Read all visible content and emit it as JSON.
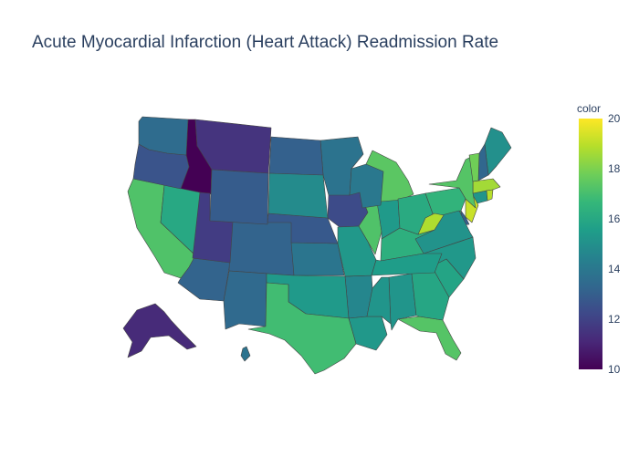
{
  "title": "Acute Myocardial Infarction (Heart Attack) Readmission Rate",
  "colorbar": {
    "title": "color",
    "min": 10,
    "max": 20,
    "ticks": [
      "10",
      "12",
      "14",
      "16",
      "18",
      "20"
    ],
    "colorscale": [
      "#440154",
      "#482878",
      "#3e4989",
      "#31688e",
      "#26828e",
      "#1f9e89",
      "#35b779",
      "#6ece58",
      "#b5de2b",
      "#fde725"
    ]
  },
  "chart_data": {
    "type": "choropleth",
    "scope": "usa",
    "colorscale": "Viridis",
    "range": [
      10,
      20
    ],
    "states": [
      {
        "state": "AK",
        "value": 11.2
      },
      {
        "state": "AL",
        "value": 15.2
      },
      {
        "state": "AR",
        "value": 14.6
      },
      {
        "state": "AZ",
        "value": 13.2
      },
      {
        "state": "CA",
        "value": 17.2
      },
      {
        "state": "CO",
        "value": 13.2
      },
      {
        "state": "CT",
        "value": 15.2
      },
      {
        "state": "DE",
        "value": 13.0
      },
      {
        "state": "FL",
        "value": 17.3
      },
      {
        "state": "GA",
        "value": 15.9
      },
      {
        "state": "HI",
        "value": 13.8
      },
      {
        "state": "IA",
        "value": 12.3
      },
      {
        "state": "ID",
        "value": 10.0
      },
      {
        "state": "IL",
        "value": 17.2
      },
      {
        "state": "IN",
        "value": 15.4
      },
      {
        "state": "KS",
        "value": 13.9
      },
      {
        "state": "KY",
        "value": 16.3
      },
      {
        "state": "LA",
        "value": 15.3
      },
      {
        "state": "MA",
        "value": 18.6
      },
      {
        "state": "MD",
        "value": 16.7
      },
      {
        "state": "ME",
        "value": 15.0
      },
      {
        "state": "MI",
        "value": 17.4
      },
      {
        "state": "MN",
        "value": 13.8
      },
      {
        "state": "MO",
        "value": 15.3
      },
      {
        "state": "MS",
        "value": 15.2
      },
      {
        "state": "MT",
        "value": 11.5
      },
      {
        "state": "NC",
        "value": 15.3
      },
      {
        "state": "ND",
        "value": 13.1
      },
      {
        "state": "NE",
        "value": 12.8
      },
      {
        "state": "NH",
        "value": 13.3
      },
      {
        "state": "NJ",
        "value": 19.2
      },
      {
        "state": "NM",
        "value": 13.4
      },
      {
        "state": "NV",
        "value": 16.0
      },
      {
        "state": "NY",
        "value": 17.3
      },
      {
        "state": "OH",
        "value": 16.1
      },
      {
        "state": "OK",
        "value": 15.4
      },
      {
        "state": "OR",
        "value": 12.6
      },
      {
        "state": "PA",
        "value": 16.5
      },
      {
        "state": "RI",
        "value": 18.9
      },
      {
        "state": "SC",
        "value": 15.8
      },
      {
        "state": "SD",
        "value": 14.8
      },
      {
        "state": "TN",
        "value": 15.5
      },
      {
        "state": "TX",
        "value": 16.9
      },
      {
        "state": "UT",
        "value": 11.8
      },
      {
        "state": "VA",
        "value": 15.1
      },
      {
        "state": "VT",
        "value": 17.8
      },
      {
        "state": "WA",
        "value": 13.5
      },
      {
        "state": "WI",
        "value": 14.0
      },
      {
        "state": "WV",
        "value": 18.8
      },
      {
        "state": "WY",
        "value": 12.9
      }
    ]
  }
}
